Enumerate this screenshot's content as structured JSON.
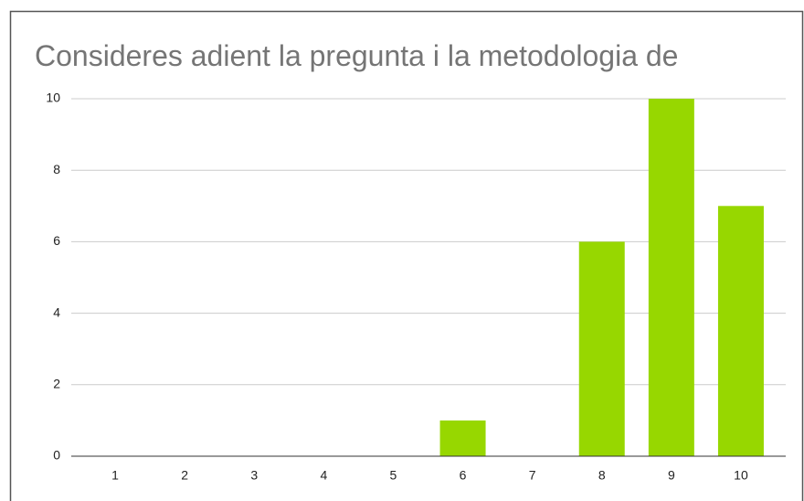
{
  "chart_data": {
    "type": "bar",
    "title": "Consideres adient la pregunta i la metodologia de",
    "categories": [
      "1",
      "2",
      "3",
      "4",
      "5",
      "6",
      "7",
      "8",
      "9",
      "10"
    ],
    "values": [
      0,
      0,
      0,
      0,
      0,
      1,
      0,
      6,
      10,
      7
    ],
    "color": "#97d700",
    "ylim": [
      0,
      10
    ],
    "yticks": [
      0,
      2,
      4,
      6,
      8,
      10
    ],
    "grid": true
  }
}
